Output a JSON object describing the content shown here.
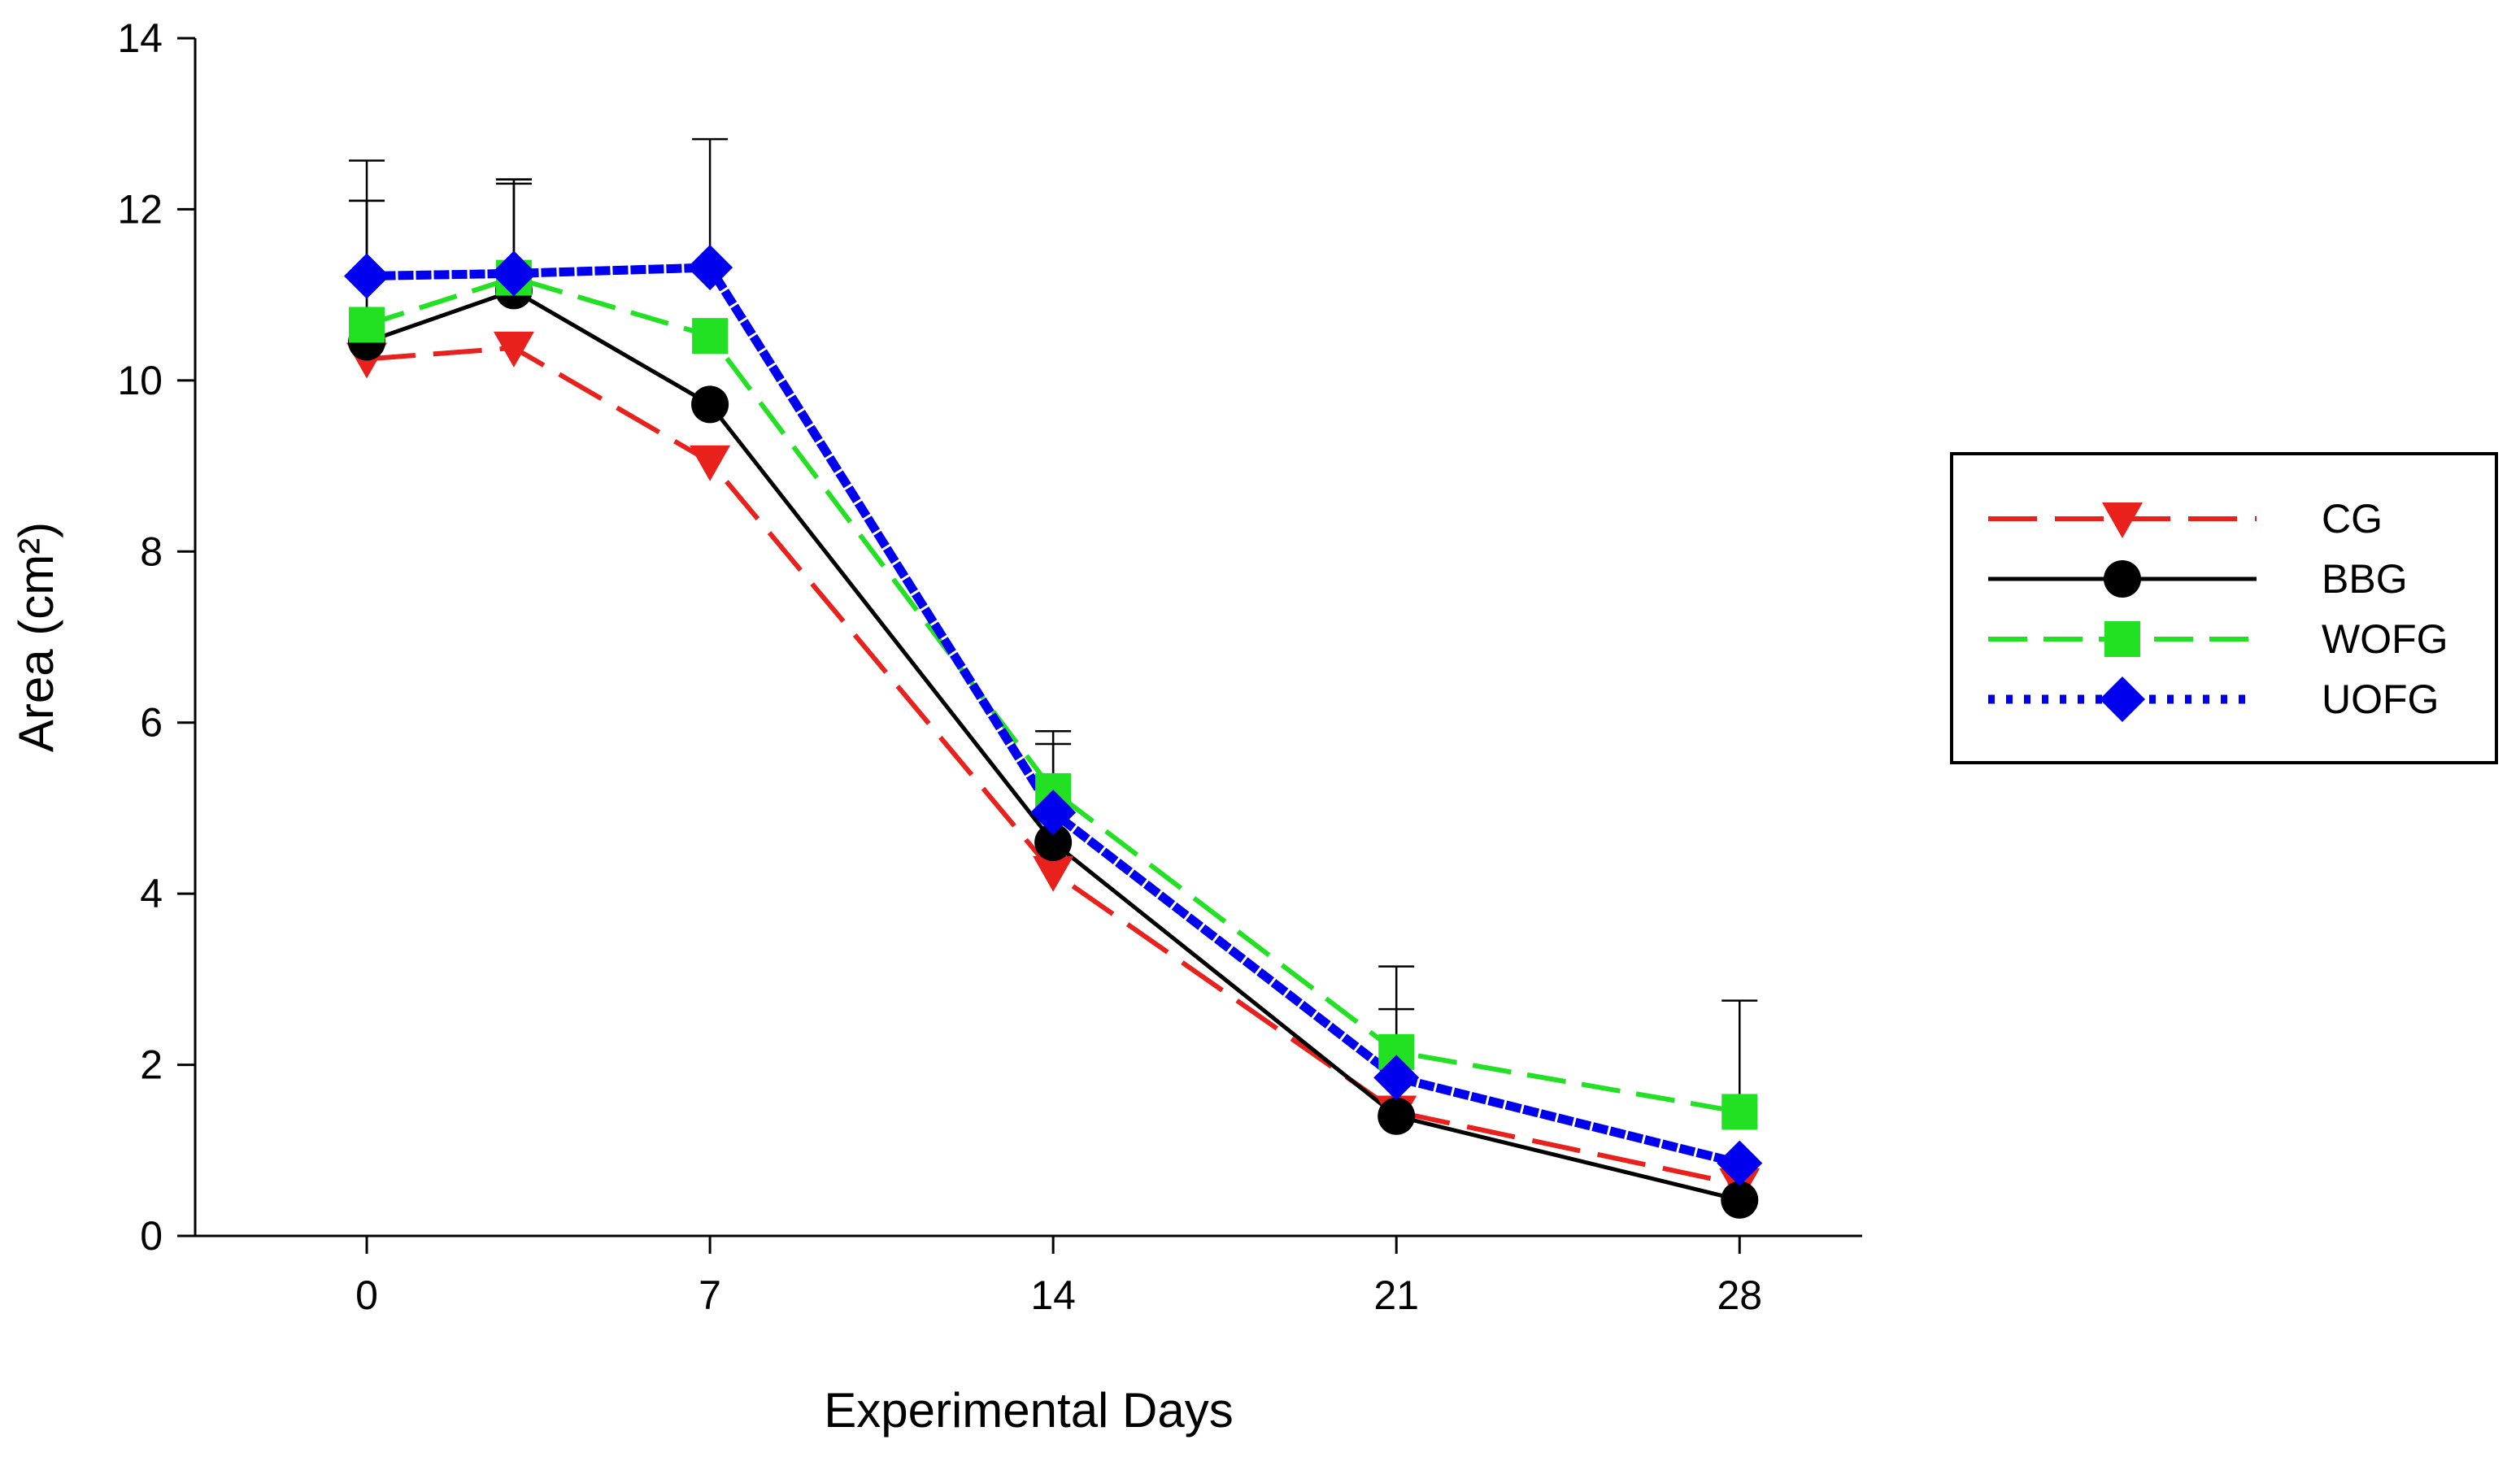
{
  "chart_data": {
    "type": "line",
    "title": "",
    "xlabel": "Experimental Days",
    "ylabel": "Area (cm²)",
    "xlim": [
      -3.5,
      30.5
    ],
    "ylim": [
      0,
      14
    ],
    "x": [
      0,
      3,
      7,
      14,
      21,
      28
    ],
    "x_ticks": [
      "0",
      "7",
      "14",
      "21",
      "28"
    ],
    "x_tick_values": [
      0,
      7,
      14,
      21,
      28
    ],
    "y_ticks": [
      "0",
      "2",
      "4",
      "6",
      "8",
      "10",
      "12",
      "14"
    ],
    "y_tick_values": [
      0,
      2,
      4,
      6,
      8,
      10,
      12,
      14
    ],
    "grid": false,
    "legend_position": "right",
    "series": [
      {
        "name": "CG",
        "values": [
          10.25,
          10.38,
          9.05,
          4.25,
          1.45,
          0.6
        ],
        "error": [
          0,
          0,
          0,
          0,
          0,
          0
        ],
        "color": "#e8211c",
        "line_style": "long-dash",
        "marker": "triangle-down"
      },
      {
        "name": "BBG",
        "values": [
          10.45,
          11.05,
          9.72,
          4.6,
          1.4,
          0.42
        ],
        "error": [
          1.65,
          1.3,
          0,
          0,
          0,
          0
        ],
        "color": "#000000",
        "line_style": "solid",
        "marker": "circle"
      },
      {
        "name": "WOFG",
        "values": [
          10.65,
          11.2,
          10.52,
          5.2,
          2.15,
          1.45
        ],
        "error": [
          1.45,
          1.1,
          0,
          0.55,
          0.5,
          1.3
        ],
        "color": "#22e022",
        "line_style": "dash",
        "marker": "square"
      },
      {
        "name": "UOFG",
        "values": [
          11.22,
          11.25,
          11.32,
          4.95,
          1.85,
          0.85
        ],
        "error": [
          1.35,
          1.1,
          1.5,
          0.95,
          1.3,
          0
        ],
        "color": "#0000ee",
        "line_style": "dotted",
        "marker": "diamond"
      }
    ]
  }
}
